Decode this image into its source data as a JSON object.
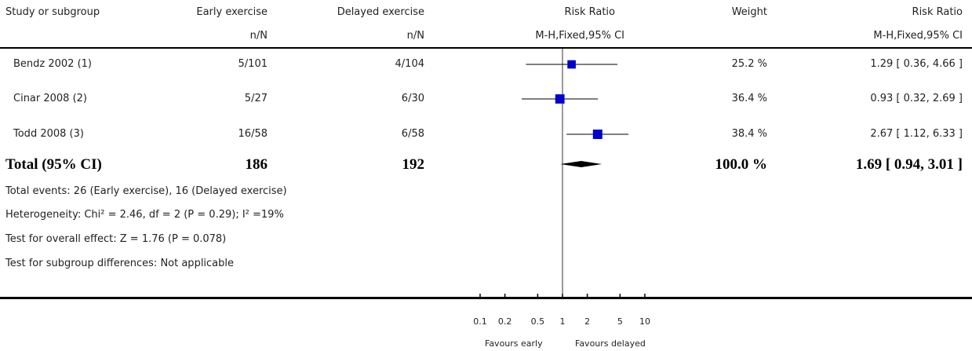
{
  "headers": {
    "study": "Study or subgroup",
    "early": "Early exercise",
    "delayed": "Delayed exercise",
    "rr": "Risk Ratio",
    "weight": "Weight",
    "rr2": "Risk Ratio",
    "nN1": "n/N",
    "nN2": "n/N",
    "method": "M-H,Fixed,95% CI",
    "method2": "M-H,Fixed,95% CI"
  },
  "studies": [
    {
      "name": "Bendz 2002 (1)",
      "early": "5/101",
      "delayed": "4/104",
      "weight": "25.2 %",
      "ci_text": "1.29 [ 0.36, 4.66 ]"
    },
    {
      "name": "Cinar 2008 (2)",
      "early": "5/27",
      "delayed": "6/30",
      "weight": "36.4 %",
      "ci_text": "0.93 [ 0.32, 2.69 ]"
    },
    {
      "name": "Todd 2008 (3)",
      "early": "16/58",
      "delayed": "6/58",
      "weight": "38.4 %",
      "ci_text": "2.67 [ 1.12, 6.33 ]"
    }
  ],
  "total": {
    "label": "Total (95% CI)",
    "early": "186",
    "delayed": "192",
    "weight": "100.0 %",
    "ci_text": "1.69 [ 0.94, 3.01 ]"
  },
  "footnotes": [
    "Total events: 26 (Early exercise), 16 (Delayed exercise)",
    "Heterogeneity: Chi² = 2.46, df = 2 (P = 0.29); I² =19%",
    "Test for overall effect: Z = 1.76 (P = 0.078)",
    "Test for subgroup differences: Not applicable"
  ],
  "axis": {
    "left_label": "Favours early",
    "right_label": "Favours delayed"
  },
  "chart_data": {
    "type": "forest",
    "scale": "log",
    "xlim": [
      0.1,
      10
    ],
    "ticks": [
      0.1,
      0.2,
      0.5,
      1,
      2,
      5,
      10
    ],
    "tick_labels": [
      "0.1",
      "0.2",
      "0.5",
      "1",
      "2",
      "5",
      "10"
    ],
    "null_value": 1,
    "studies": [
      {
        "name": "Bendz 2002 (1)",
        "rr": 1.29,
        "lower": 0.36,
        "upper": 4.66,
        "weight": 25.2
      },
      {
        "name": "Cinar 2008 (2)",
        "rr": 0.93,
        "lower": 0.32,
        "upper": 2.69,
        "weight": 36.4
      },
      {
        "name": "Todd 2008 (3)",
        "rr": 2.67,
        "lower": 1.12,
        "upper": 6.33,
        "weight": 38.4
      }
    ],
    "pooled": {
      "rr": 1.69,
      "lower": 0.94,
      "upper": 3.01
    },
    "colors": {
      "marker": "#0000cc",
      "line": "#000000"
    }
  }
}
